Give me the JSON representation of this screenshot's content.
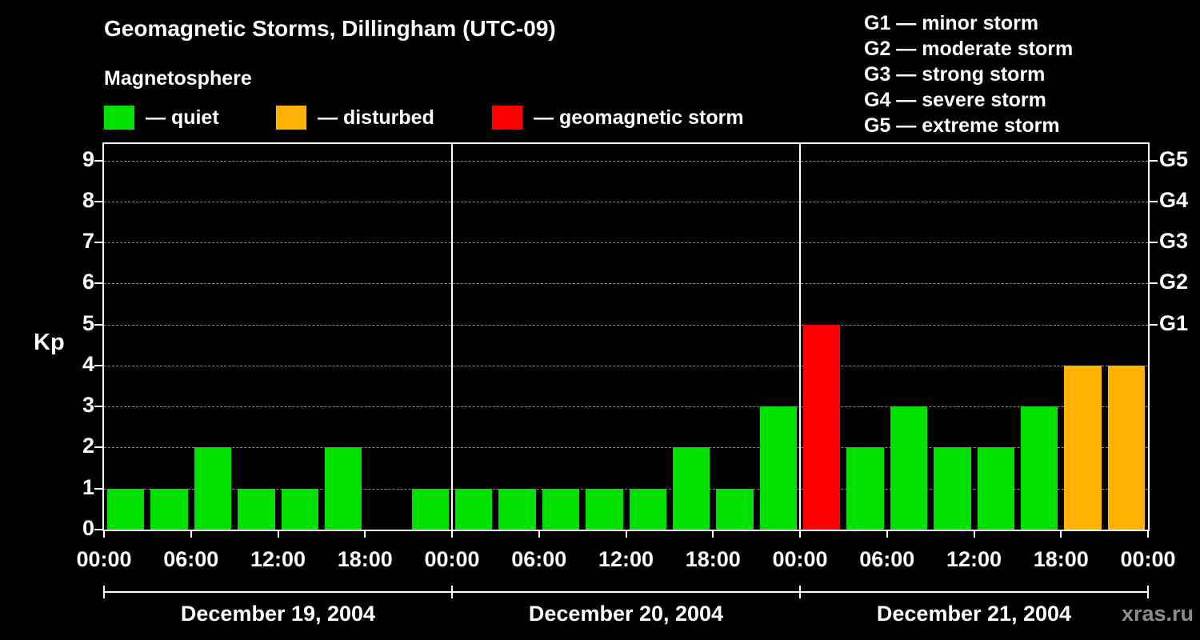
{
  "chart_data": {
    "type": "bar",
    "title": "Geomagnetic Storms, Dillingham (UTC-09)",
    "subtitle": "Magnetosphere",
    "ylabel": "Kp",
    "ylim": [
      0,
      9.4
    ],
    "yticks": [
      0,
      1,
      2,
      3,
      4,
      5,
      6,
      7,
      8,
      9
    ],
    "grid": "dashed-horizontal",
    "hours_per_bar": 3,
    "x_tick_hours": [
      "00:00",
      "06:00",
      "12:00",
      "18:00"
    ],
    "x_end_label": "00:00",
    "days": [
      {
        "date": "December 19, 2004",
        "values": [
          1,
          1,
          2,
          1,
          1,
          2,
          0,
          1
        ]
      },
      {
        "date": "December 20, 2004",
        "values": [
          1,
          1,
          1,
          1,
          1,
          2,
          1,
          3
        ]
      },
      {
        "date": "December 21, 2004",
        "values": [
          5,
          2,
          3,
          2,
          2,
          3,
          4,
          4
        ]
      }
    ],
    "colors": {
      "quiet": "#00e100",
      "disturbed": "#ffb300",
      "storm": "#ff0000"
    },
    "color_thresholds": {
      "disturbed_kp": 4,
      "storm_kp": 5
    },
    "legend": {
      "items": [
        {
          "label": "— quiet",
          "color": "#00e100"
        },
        {
          "label": "— disturbed",
          "color": "#ffb300"
        },
        {
          "label": "— geomagnetic storm",
          "color": "#ff0000"
        }
      ]
    },
    "g_scale_legend": [
      "G1 — minor storm",
      "G2 — moderate storm",
      "G3 — strong storm",
      "G4 — severe storm",
      "G5 — extreme storm"
    ],
    "right_axis_labels": [
      {
        "label": "G1",
        "kp": 5
      },
      {
        "label": "G2",
        "kp": 6
      },
      {
        "label": "G3",
        "kp": 7
      },
      {
        "label": "G4",
        "kp": 8
      },
      {
        "label": "G5",
        "kp": 9
      }
    ]
  },
  "watermark": "xras.ru"
}
